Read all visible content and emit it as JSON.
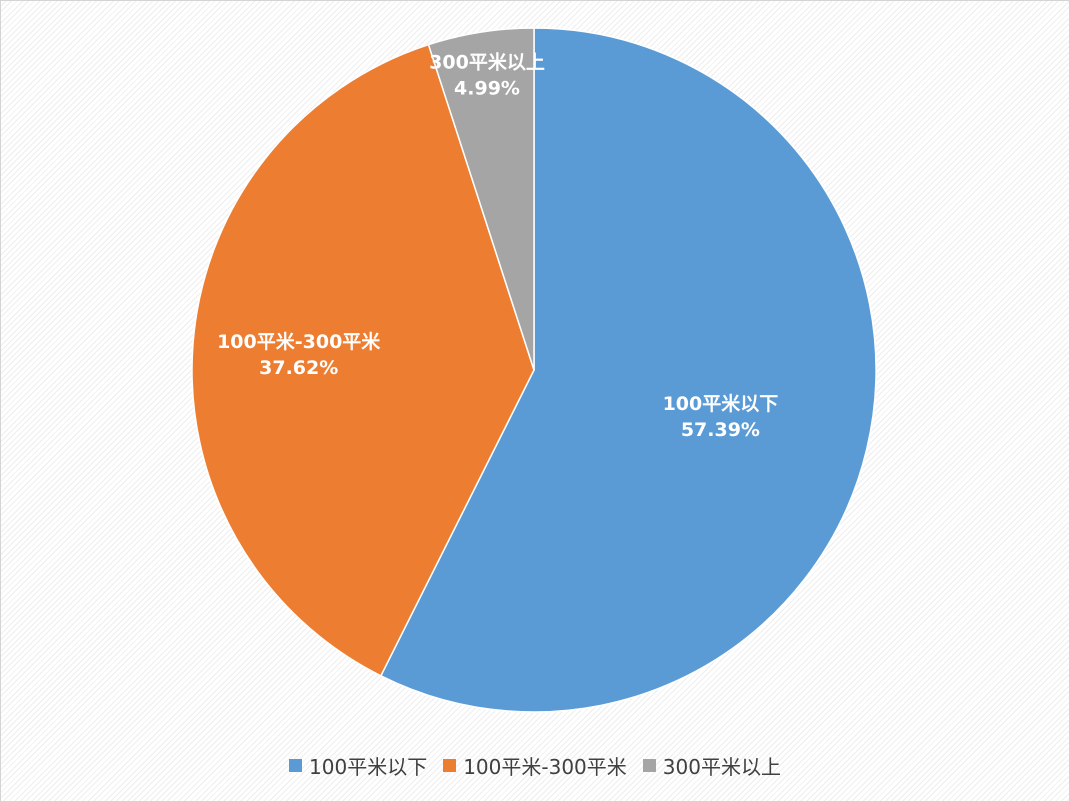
{
  "chart_data": {
    "type": "pie",
    "title": "",
    "slices": [
      {
        "name": "100平米以下",
        "value": 57.39,
        "label_value": "57.39%",
        "color": "#5b9bd5"
      },
      {
        "name": "100平米-300平米",
        "value": 37.62,
        "label_value": "37.62%",
        "color": "#ed7d31"
      },
      {
        "name": "300平米以上",
        "value": 4.99,
        "label_value": "4.99%",
        "color": "#a5a5a5"
      }
    ],
    "start_angle": "12 o'clock",
    "direction": "clockwise",
    "legend_position": "bottom",
    "data_labels": "inside, category name and percentage"
  }
}
